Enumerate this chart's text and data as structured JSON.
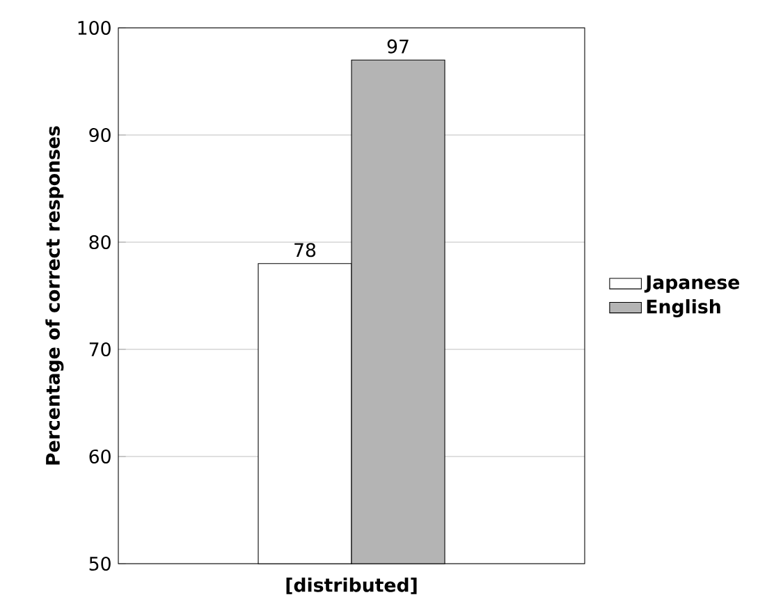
{
  "chart_data": {
    "type": "bar",
    "ylabel": "Percentage of correct responses",
    "categories": [
      "[distributed]"
    ],
    "series": [
      {
        "name": "Japanese",
        "color": "#ffffff",
        "values": [
          78
        ]
      },
      {
        "name": "English",
        "color": "#b4b4b4",
        "values": [
          97
        ]
      }
    ],
    "ylim": [
      50,
      100
    ],
    "yticks": [
      50,
      60,
      70,
      80,
      90,
      100
    ],
    "grid": "y",
    "legend": "right",
    "data_labels": true
  }
}
